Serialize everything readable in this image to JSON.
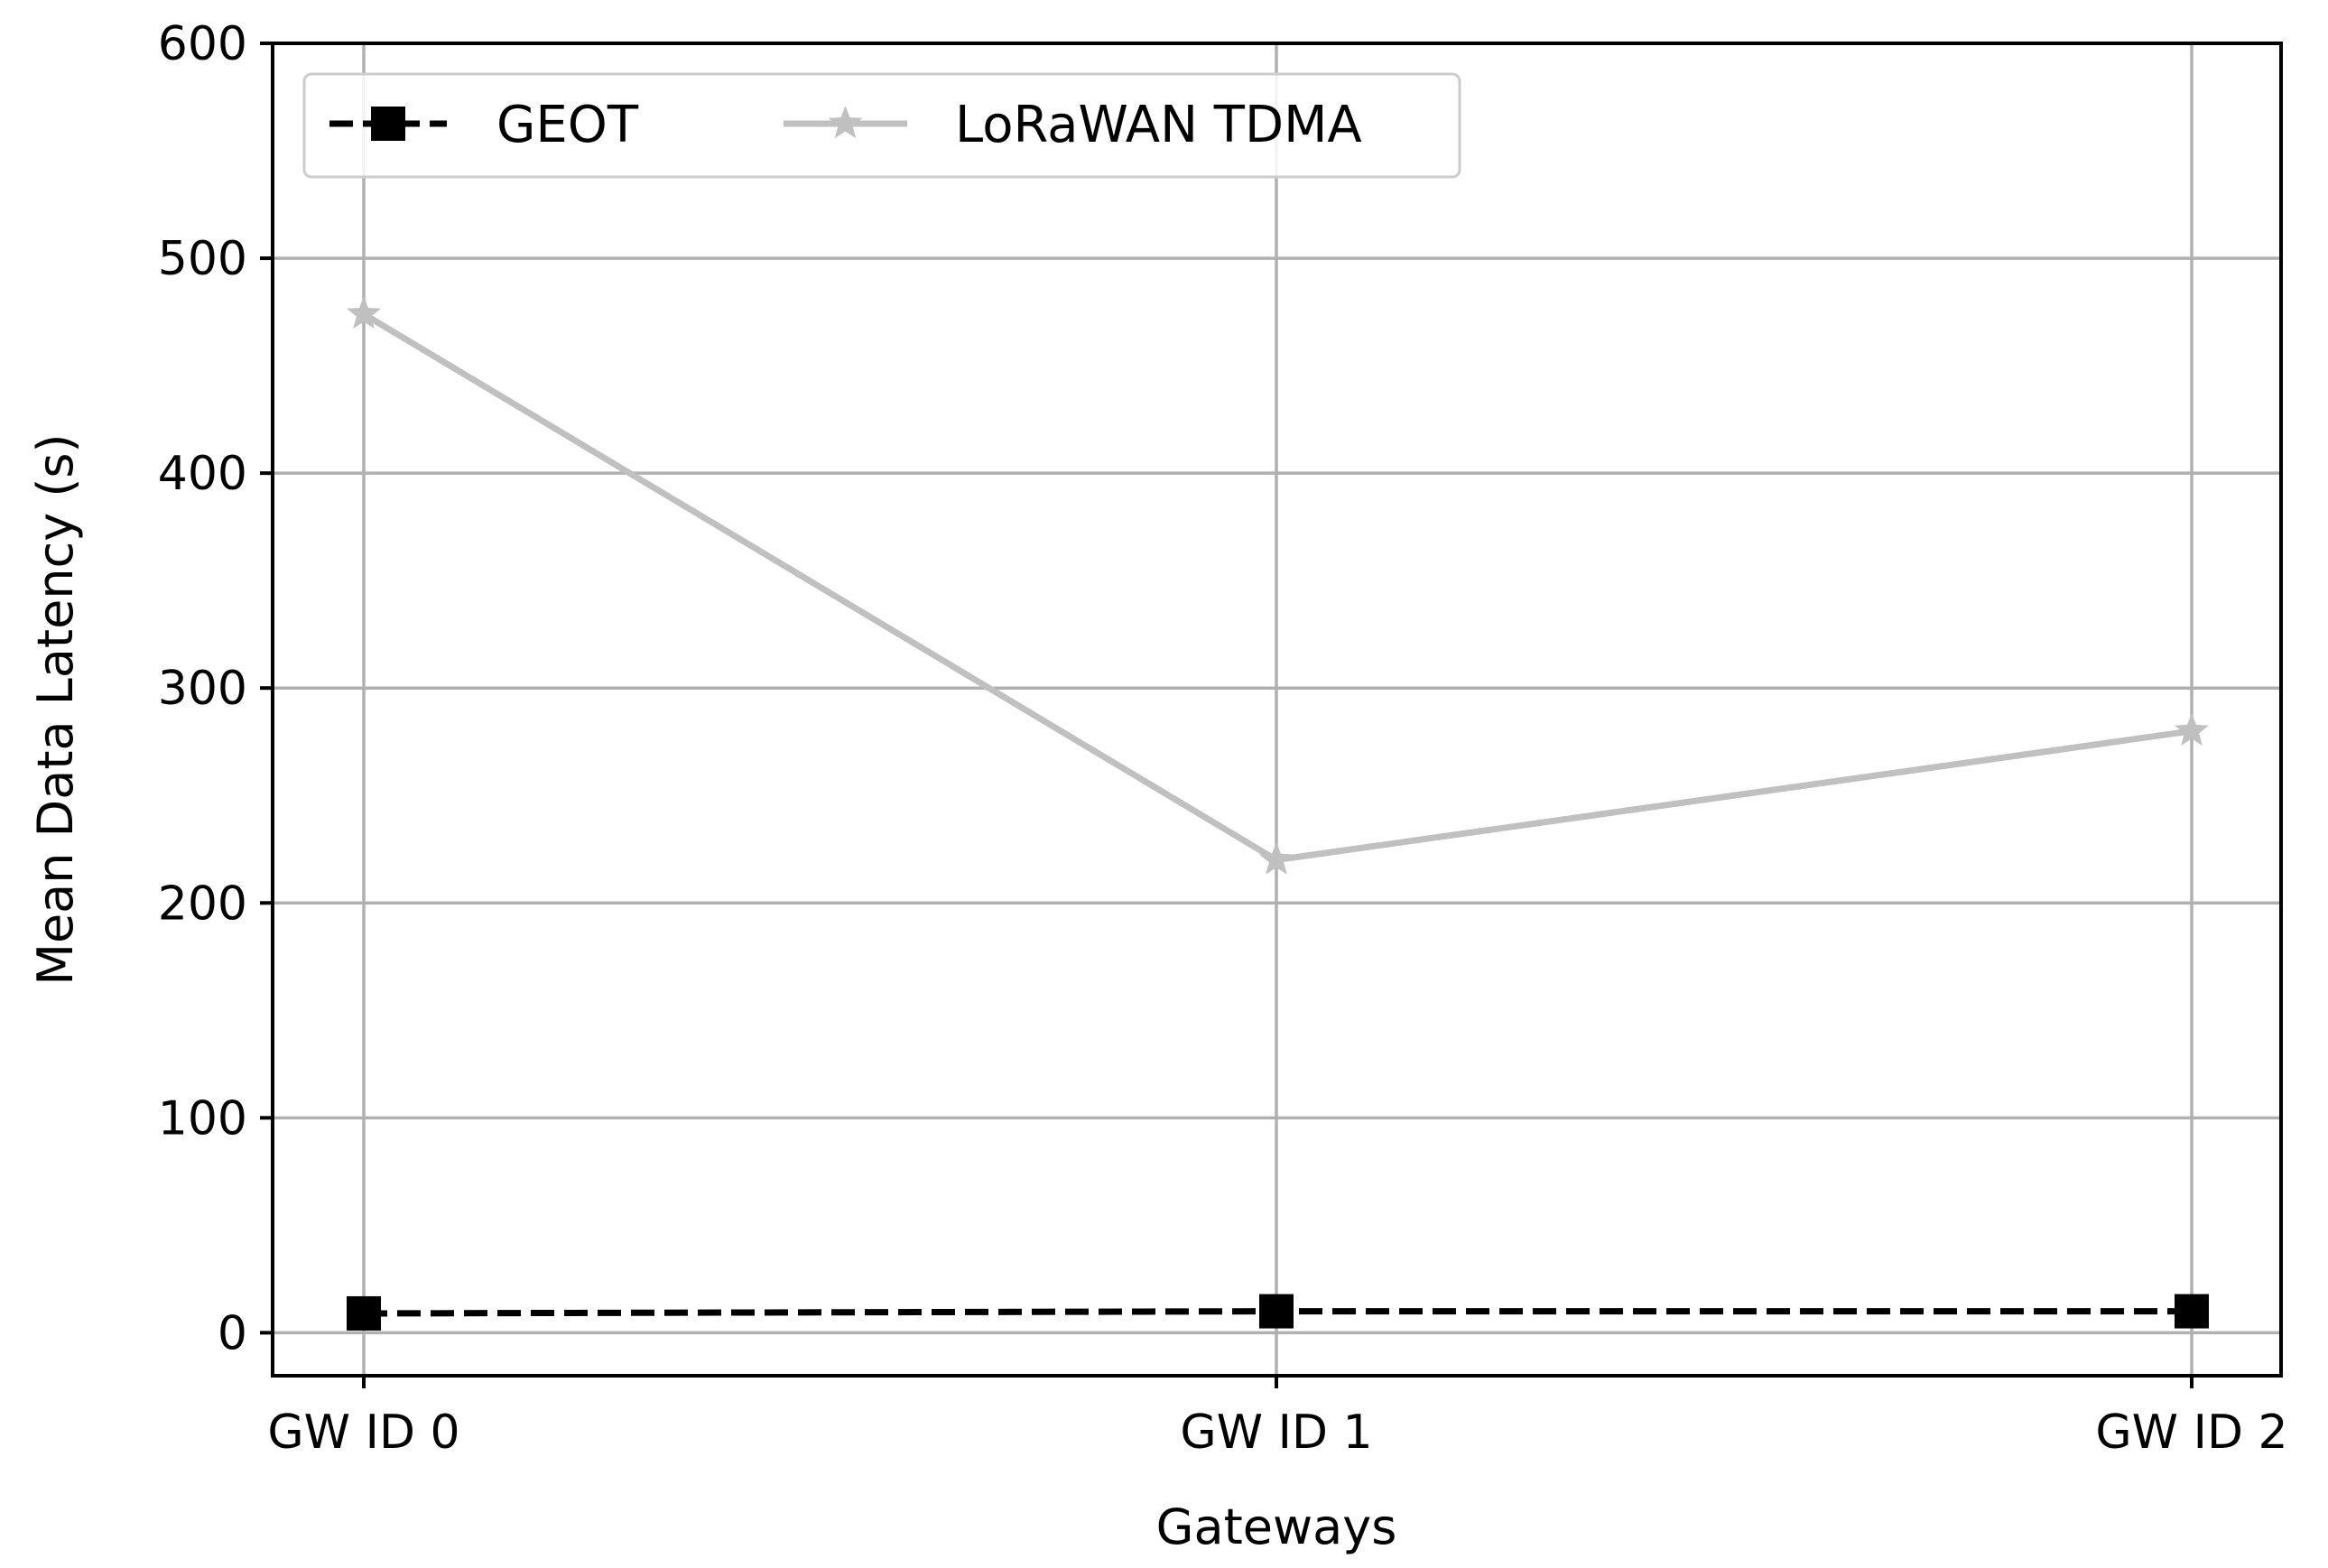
{
  "chart_data": {
    "type": "line",
    "title": "",
    "xlabel": "Gateways",
    "ylabel": "Mean Data Latency (s)",
    "categories": [
      "GW ID 0",
      "GW ID 1",
      "GW ID 2"
    ],
    "ylim": [
      -20,
      600
    ],
    "yticks": [
      0,
      100,
      200,
      300,
      400,
      500,
      600
    ],
    "ytick_labels": [
      "0",
      "100",
      "200",
      "300",
      "400",
      "500",
      "600"
    ],
    "grid": true,
    "legend_position": "top-left",
    "series": [
      {
        "name": "GEOT",
        "values": [
          9,
          10,
          10
        ],
        "color": "#000000",
        "line_style": "dashed",
        "marker": "square"
      },
      {
        "name": "LoRaWAN TDMA",
        "values": [
          474,
          220,
          280
        ],
        "color": "#c0c0c0",
        "line_style": "solid",
        "marker": "star"
      }
    ]
  }
}
